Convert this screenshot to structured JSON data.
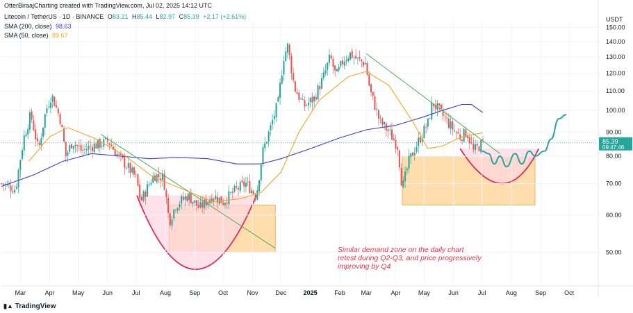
{
  "watermark": "OtterBiraajCharting created with TradingView.com, Jul 02, 2025 14:12 UTC",
  "symbol": {
    "name": "Litecoin / TetherUS · 1D · BINANCE",
    "o_label": "O",
    "o": "83.21",
    "h_label": "H",
    "h": "85.44",
    "l_label": "L",
    "l": "82.97",
    "c_label": "C",
    "c": "85.39",
    "change": "+2.17 (+2.61%)"
  },
  "indicators": [
    {
      "label": "SMA (200, close)",
      "value": "98.63",
      "color": "#3b3bd6"
    },
    {
      "label": "SMA (50, close)",
      "value": "89.67",
      "color": "#f5a623"
    }
  ],
  "brand": "TradingView",
  "currency": "USDT",
  "price_tag": {
    "price": "85.39",
    "countdown": "09:47:46",
    "color": "#26a69a"
  },
  "annotation": [
    "Similar demand zone on the daily chart",
    "retest during Q2-Q3, and price progressively",
    "improving by Q4"
  ],
  "colors": {
    "up": "#26a69a",
    "down": "#ef5350",
    "zone": "#ffcf8a",
    "arc": "#e0285a",
    "trend": "#4caf50"
  },
  "chart_data": {
    "type": "candlestick",
    "y_scale": "log",
    "ylim": [
      43,
      155
    ],
    "y_ticks": [
      50,
      60,
      70,
      80,
      90,
      100,
      110,
      120,
      130,
      140,
      150
    ],
    "y_tick_labels": [
      "50.00",
      "60.00",
      "70.00",
      "80.00",
      "90.00",
      "100.00",
      "110.00",
      "120.00",
      "130.00",
      "140.00",
      "150.00"
    ],
    "x_ticks": [
      "2024-03-01",
      "2024-04-01",
      "2024-05-01",
      "2024-06-01",
      "2024-07-01",
      "2024-08-01",
      "2024-09-01",
      "2024-10-01",
      "2024-11-01",
      "2024-12-01",
      "2025-01-01",
      "2025-02-01",
      "2025-03-01",
      "2025-04-01",
      "2025-05-01",
      "2025-06-01",
      "2025-07-01",
      "2025-08-01",
      "2025-09-01",
      "2025-10-01"
    ],
    "x_tick_labels": [
      "Mar",
      "Apr",
      "May",
      "Jun",
      "Jul",
      "Aug",
      "Sep",
      "Oct",
      "Nov",
      "Dec",
      "2025",
      "Feb",
      "Mar",
      "Apr",
      "May",
      "Jun",
      "Jul",
      "Aug",
      "Sep",
      "Oct"
    ],
    "xlim": [
      "2024-02-10",
      "2025-10-31"
    ],
    "price_path": [
      [
        "2024-02-10",
        70
      ],
      [
        "2024-02-25",
        68
      ],
      [
        "2024-03-05",
        88
      ],
      [
        "2024-03-12",
        98
      ],
      [
        "2024-03-20",
        82
      ],
      [
        "2024-03-28",
        100
      ],
      [
        "2024-04-03",
        108
      ],
      [
        "2024-04-12",
        96
      ],
      [
        "2024-04-18",
        80
      ],
      [
        "2024-04-25",
        86
      ],
      [
        "2024-05-05",
        82
      ],
      [
        "2024-05-15",
        84
      ],
      [
        "2024-05-25",
        85
      ],
      [
        "2024-06-02",
        86
      ],
      [
        "2024-06-12",
        80
      ],
      [
        "2024-06-22",
        76
      ],
      [
        "2024-07-01",
        72
      ],
      [
        "2024-07-06",
        64
      ],
      [
        "2024-07-20",
        73
      ],
      [
        "2024-07-30",
        72
      ],
      [
        "2024-08-05",
        58
      ],
      [
        "2024-08-12",
        63
      ],
      [
        "2024-08-25",
        66
      ],
      [
        "2024-09-06",
        62
      ],
      [
        "2024-09-20",
        66
      ],
      [
        "2024-10-01",
        64
      ],
      [
        "2024-10-15",
        68
      ],
      [
        "2024-10-25",
        70
      ],
      [
        "2024-11-05",
        66
      ],
      [
        "2024-11-12",
        82
      ],
      [
        "2024-11-20",
        92
      ],
      [
        "2024-11-28",
        104
      ],
      [
        "2024-12-04",
        130
      ],
      [
        "2024-12-08",
        137
      ],
      [
        "2024-12-15",
        112
      ],
      [
        "2024-12-25",
        102
      ],
      [
        "2025-01-05",
        106
      ],
      [
        "2025-01-15",
        118
      ],
      [
        "2025-01-22",
        130
      ],
      [
        "2025-01-28",
        118
      ],
      [
        "2025-02-05",
        128
      ],
      [
        "2025-02-12",
        132
      ],
      [
        "2025-02-20",
        128
      ],
      [
        "2025-02-28",
        126
      ],
      [
        "2025-03-05",
        110
      ],
      [
        "2025-03-15",
        95
      ],
      [
        "2025-03-25",
        90
      ],
      [
        "2025-04-03",
        84
      ],
      [
        "2025-04-08",
        68
      ],
      [
        "2025-04-15",
        78
      ],
      [
        "2025-04-25",
        86
      ],
      [
        "2025-05-05",
        94
      ],
      [
        "2025-05-10",
        104
      ],
      [
        "2025-05-20",
        98
      ],
      [
        "2025-05-30",
        92
      ],
      [
        "2025-06-08",
        88
      ],
      [
        "2025-06-15",
        90
      ],
      [
        "2025-06-22",
        82
      ],
      [
        "2025-07-02",
        85.39
      ]
    ],
    "series": [
      {
        "name": "SMA (200, close)",
        "color": "#3b3bd6",
        "points": [
          [
            "2024-02-10",
            69
          ],
          [
            "2024-03-15",
            73
          ],
          [
            "2024-04-15",
            78
          ],
          [
            "2024-05-15",
            81
          ],
          [
            "2024-06-15",
            80
          ],
          [
            "2024-07-15",
            79
          ],
          [
            "2024-08-15",
            79.5
          ],
          [
            "2024-09-15",
            79
          ],
          [
            "2024-10-15",
            77
          ],
          [
            "2024-11-10",
            77
          ],
          [
            "2024-12-01",
            79
          ],
          [
            "2025-01-01",
            83
          ],
          [
            "2025-02-01",
            87.5
          ],
          [
            "2025-03-01",
            91
          ],
          [
            "2025-04-01",
            93
          ],
          [
            "2025-05-01",
            97
          ],
          [
            "2025-05-20",
            100
          ],
          [
            "2025-06-10",
            103
          ],
          [
            "2025-06-20",
            103
          ],
          [
            "2025-07-02",
            99
          ]
        ]
      },
      {
        "name": "SMA (50, close)",
        "color": "#f5a623",
        "points": [
          [
            "2024-03-10",
            78
          ],
          [
            "2024-04-01",
            88
          ],
          [
            "2024-04-20",
            92
          ],
          [
            "2024-05-20",
            87
          ],
          [
            "2024-06-20",
            80
          ],
          [
            "2024-07-20",
            72
          ],
          [
            "2024-08-20",
            68
          ],
          [
            "2024-09-20",
            64
          ],
          [
            "2024-10-20",
            65
          ],
          [
            "2024-11-10",
            67
          ],
          [
            "2024-12-01",
            74
          ],
          [
            "2024-12-20",
            90
          ],
          [
            "2025-01-10",
            105
          ],
          [
            "2025-02-10",
            118
          ],
          [
            "2025-03-01",
            121
          ],
          [
            "2025-03-25",
            113
          ],
          [
            "2025-04-20",
            94
          ],
          [
            "2025-05-05",
            83
          ],
          [
            "2025-05-20",
            84
          ],
          [
            "2025-06-10",
            88
          ],
          [
            "2025-07-02",
            89.67
          ]
        ]
      }
    ],
    "demand_zones": [
      {
        "x0": "2024-08-05",
        "x1": "2024-11-25",
        "y0": 50,
        "y1": 63
      },
      {
        "x0": "2025-04-08",
        "x1": "2025-08-26",
        "y0": 63,
        "y1": 80
      }
    ],
    "trendlines": [
      {
        "from": [
          "2024-05-25",
          89
        ],
        "to": [
          "2024-11-25",
          51
        ]
      },
      {
        "from": [
          "2025-03-01",
          132
        ],
        "to": [
          "2025-07-20",
          81
        ]
      }
    ],
    "arcs": [
      {
        "left": [
          "2024-07-02",
          66
        ],
        "bottom": [
          "2024-09-01",
          46
        ],
        "right": [
          "2024-11-05",
          66
        ],
        "fill": "#ffd6e0"
      },
      {
        "left": [
          "2025-06-08",
          83
        ],
        "bottom": [
          "2025-07-25",
          70
        ],
        "right": [
          "2025-08-30",
          83
        ],
        "fill": "#ffd6e0"
      }
    ],
    "projection": [
      [
        "2025-07-01",
        82
      ],
      [
        "2025-07-08",
        81
      ],
      [
        "2025-07-14",
        77
      ],
      [
        "2025-07-20",
        80
      ],
      [
        "2025-07-27",
        76
      ],
      [
        "2025-08-05",
        81
      ],
      [
        "2025-08-12",
        77
      ],
      [
        "2025-08-20",
        82
      ],
      [
        "2025-08-26",
        80
      ],
      [
        "2025-09-05",
        82
      ],
      [
        "2025-09-12",
        87
      ],
      [
        "2025-09-20",
        96
      ],
      [
        "2025-09-28",
        98
      ]
    ]
  }
}
